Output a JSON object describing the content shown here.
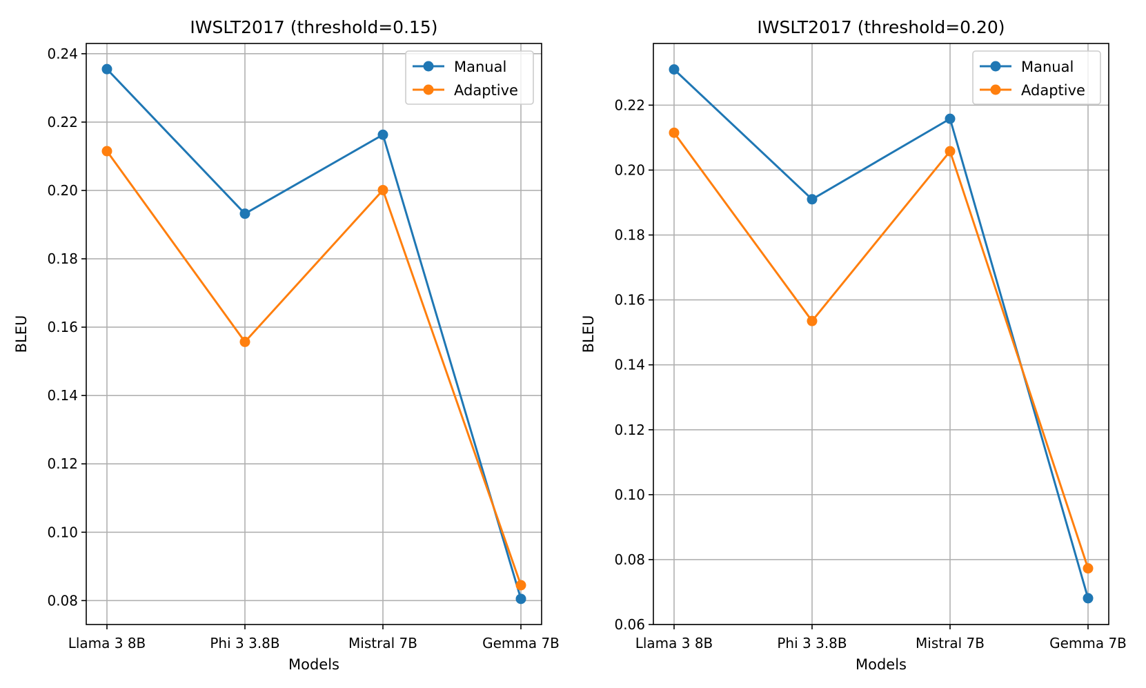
{
  "chart_data": [
    {
      "type": "line",
      "title": "IWSLT2017 (threshold=0.15)",
      "xlabel": "Models",
      "ylabel": "BLEU",
      "categories": [
        "Llama 3 8B",
        "Phi 3 3.8B",
        "Mistral 7B",
        "Gemma 7B"
      ],
      "ylim": [
        0.073,
        0.243
      ],
      "yticks": [
        "0.08",
        "0.10",
        "0.12",
        "0.14",
        "0.16",
        "0.18",
        "0.20",
        "0.22",
        "0.24"
      ],
      "grid": true,
      "legend_position": "top-right",
      "series": [
        {
          "name": "Manual",
          "color": "#1f77b4",
          "marker": "circle",
          "values": [
            0.2355,
            0.1932,
            0.2163,
            0.0805
          ]
        },
        {
          "name": "Adaptive",
          "color": "#ff7f0e",
          "marker": "circle",
          "values": [
            0.2115,
            0.1557,
            0.2001,
            0.0845
          ]
        }
      ]
    },
    {
      "type": "line",
      "title": "IWSLT2017 (threshold=0.20)",
      "xlabel": "Models",
      "ylabel": "BLEU",
      "categories": [
        "Llama 3 8B",
        "Phi 3 3.8B",
        "Mistral 7B",
        "Gemma 7B"
      ],
      "ylim": [
        0.06,
        0.239
      ],
      "yticks": [
        "0.06",
        "0.08",
        "0.10",
        "0.12",
        "0.14",
        "0.16",
        "0.18",
        "0.20",
        "0.22"
      ],
      "grid": true,
      "legend_position": "top-right",
      "series": [
        {
          "name": "Manual",
          "color": "#1f77b4",
          "marker": "circle",
          "values": [
            0.231,
            0.191,
            0.2158,
            0.0681
          ]
        },
        {
          "name": "Adaptive",
          "color": "#ff7f0e",
          "marker": "circle",
          "values": [
            0.2115,
            0.1535,
            0.2058,
            0.0773
          ]
        }
      ]
    }
  ]
}
